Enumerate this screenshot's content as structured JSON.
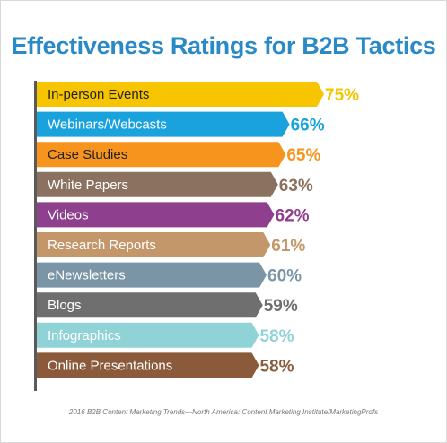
{
  "chart_data": {
    "type": "bar",
    "orientation": "horizontal",
    "title": "Effectiveness Ratings for B2B Tactics",
    "categories": [
      "In-person Events",
      "Webinars/Webcasts",
      "Case Studies",
      "White Papers",
      "Videos",
      "Research Reports",
      "eNewsletters",
      "Blogs",
      "Infographics",
      "Online Presentations"
    ],
    "values": [
      75,
      66,
      65,
      63,
      62,
      61,
      60,
      59,
      58,
      58
    ],
    "value_labels": [
      "75%",
      "66%",
      "65%",
      "63%",
      "62%",
      "61%",
      "60%",
      "59%",
      "58%",
      "58%"
    ],
    "colors": [
      "#f7c400",
      "#1aa2dc",
      "#f7941d",
      "#8b7260",
      "#8e3f8e",
      "#c3976a",
      "#7a95a6",
      "#6f6f6f",
      "#8fd3d6",
      "#8a5a3a"
    ],
    "xlim": [
      0,
      75
    ]
  },
  "footer": {
    "source": "2016 B2B Content Marketing Trends—North America: Content Marketing Institute/MarketingProfs"
  }
}
